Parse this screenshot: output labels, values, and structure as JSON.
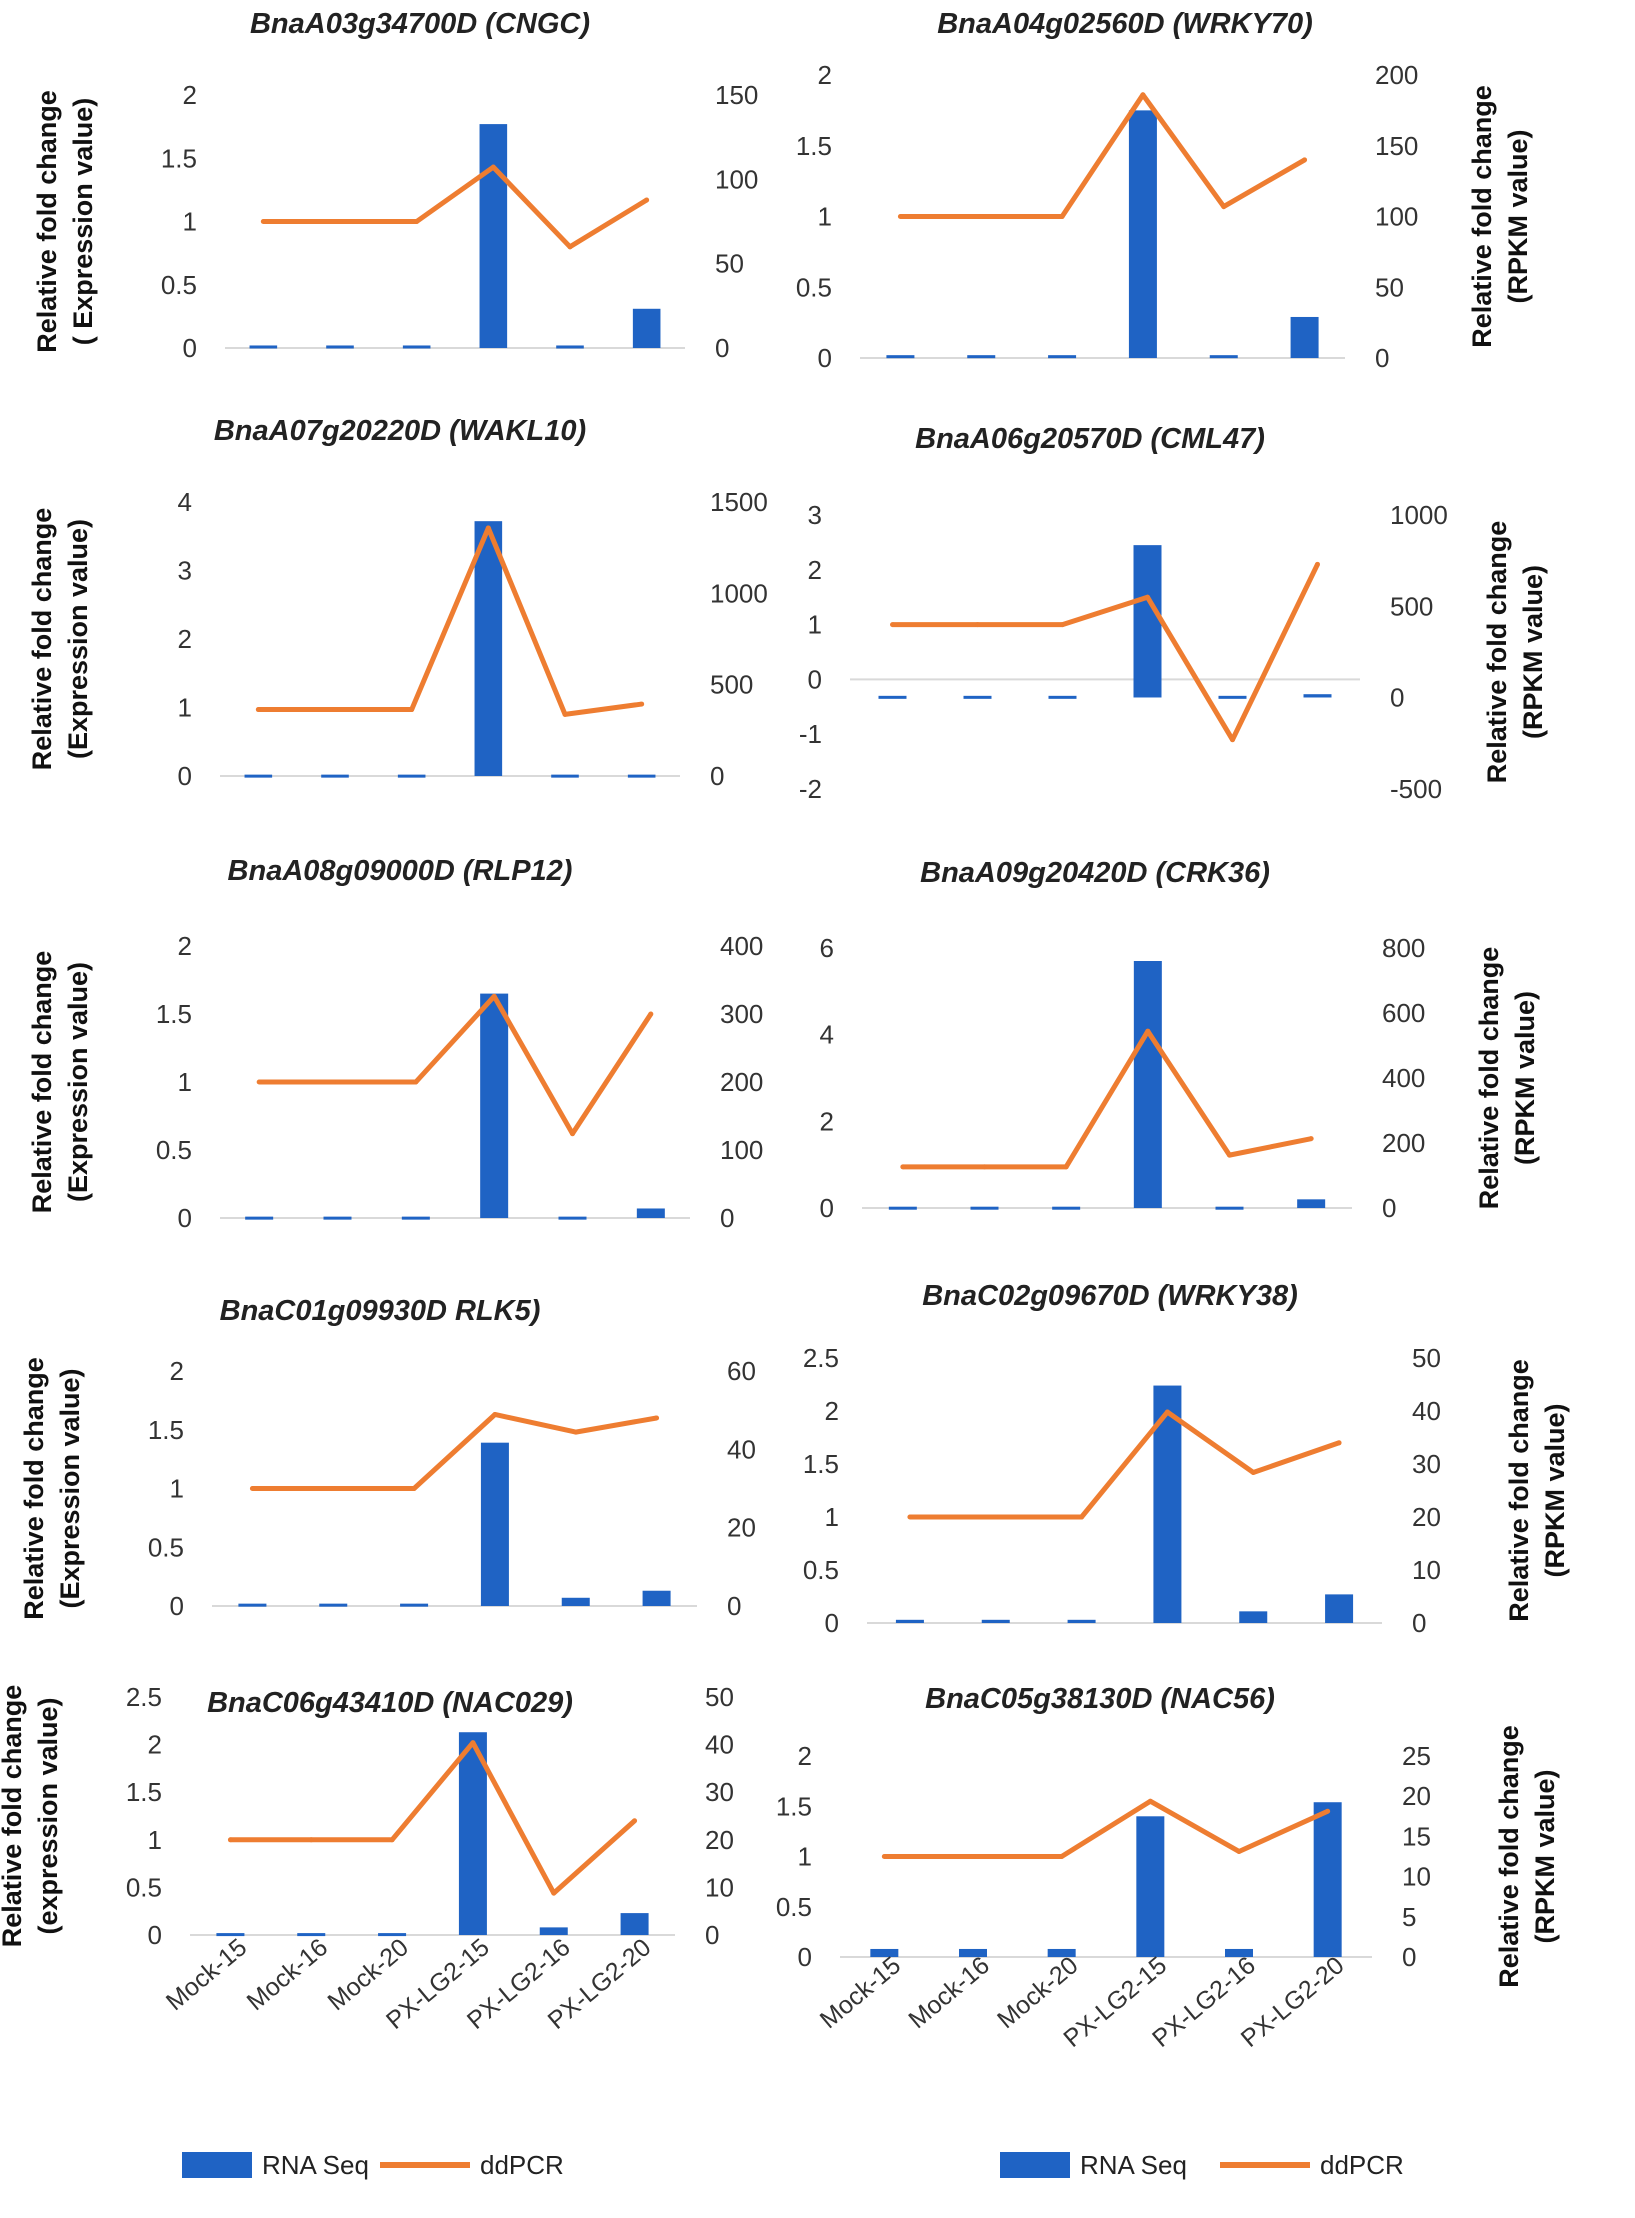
{
  "colors": {
    "bar": "#1f63c4",
    "line": "#ee7d31",
    "grid": "#d9d9d9"
  },
  "legend": {
    "bar_label": "RNA Seq",
    "line_label": "ddPCR"
  },
  "chart_data": [
    {
      "type": "bar+line",
      "title": "BnaA03g34700D (CNGC)",
      "ylabel": [
        "Relative fold change",
        "( Expression  value)"
      ],
      "ylabel_side": "left",
      "categories": [
        "Mock-15",
        "Mock-16",
        "Mock-20",
        "PX-LG2-15",
        "PX-LG2-16",
        "PX-LG2-20"
      ],
      "left_axis": {
        "min": 0,
        "max": 2,
        "ticks": [
          "0",
          "0.5",
          "1",
          "1.5",
          "2"
        ]
      },
      "right_axis": {
        "min": 0,
        "max": 150,
        "ticks": [
          "0",
          "50",
          "100",
          "150"
        ]
      },
      "series": [
        {
          "name": "RNA Seq",
          "type": "bar",
          "axis": "left",
          "values": [
            0.02,
            0.02,
            0.02,
            1.77,
            0.02,
            0.31
          ]
        },
        {
          "name": "ddPCR",
          "type": "line",
          "axis": "left",
          "values": [
            1.0,
            1.0,
            1.0,
            1.43,
            0.8,
            1.17
          ]
        }
      ],
      "show_xlabels": false
    },
    {
      "type": "bar+line",
      "title": "BnaA04g02560D (WRKY70)",
      "ylabel": [
        "Relative fold change",
        "(RPKM value)"
      ],
      "ylabel_side": "right",
      "categories": [
        "Mock-15",
        "Mock-16",
        "Mock-20",
        "PX-LG2-15",
        "PX-LG2-16",
        "PX-LG2-20"
      ],
      "left_axis": {
        "min": 0,
        "max": 2,
        "ticks": [
          "0",
          "0.5",
          "1",
          "1.5",
          "2"
        ]
      },
      "right_axis": {
        "min": 0,
        "max": 200,
        "ticks": [
          "0",
          "50",
          "100",
          "150",
          "200"
        ]
      },
      "series": [
        {
          "name": "RNA Seq",
          "type": "bar",
          "axis": "left",
          "values": [
            0.02,
            0.02,
            0.02,
            1.75,
            0.02,
            0.29
          ]
        },
        {
          "name": "ddPCR",
          "type": "line",
          "axis": "left",
          "values": [
            1.0,
            1.0,
            1.0,
            1.86,
            1.07,
            1.4
          ]
        }
      ],
      "show_xlabels": false
    },
    {
      "type": "bar+line",
      "title": "BnaA07g20220D (WAKL10)",
      "ylabel": [
        "Relative fold change",
        "(Expression value)"
      ],
      "ylabel_side": "left",
      "categories": [
        "Mock-15",
        "Mock-16",
        "Mock-20",
        "PX-LG2-15",
        "PX-LG2-16",
        "PX-LG2-20"
      ],
      "left_axis": {
        "min": 0,
        "max": 4,
        "ticks": [
          "0",
          "1",
          "2",
          "3",
          "4"
        ]
      },
      "right_axis": {
        "min": 0,
        "max": 1500,
        "ticks": [
          "0",
          "500",
          "1000",
          "1500"
        ]
      },
      "series": [
        {
          "name": "RNA Seq",
          "type": "bar",
          "axis": "left",
          "values": [
            0.02,
            0.02,
            0.02,
            3.72,
            0.02,
            0.02
          ]
        },
        {
          "name": "ddPCR",
          "type": "line",
          "axis": "left",
          "values": [
            0.97,
            0.97,
            0.97,
            3.62,
            0.9,
            1.05
          ]
        }
      ],
      "show_xlabels": false
    },
    {
      "type": "bar+line",
      "title": "BnaA06g20570D (CML47)",
      "ylabel": [
        "Relative fold change",
        "(RPKM value)"
      ],
      "ylabel_side": "right",
      "categories": [
        "Mock-15",
        "Mock-16",
        "Mock-20",
        "PX-LG2-15",
        "PX-LG2-16",
        "PX-LG2-20"
      ],
      "left_axis": {
        "min": -2,
        "max": 3,
        "ticks": [
          "-2",
          "-1",
          "0",
          "1",
          "2",
          "3"
        ]
      },
      "right_axis": {
        "min": -500,
        "max": 1000,
        "ticks": [
          "-500",
          "0",
          "500",
          "1000"
        ]
      },
      "bar_base": -0.33,
      "series": [
        {
          "name": "RNA Seq",
          "type": "bar",
          "axis": "left",
          "values": [
            -0.3,
            -0.3,
            -0.3,
            2.45,
            -0.3,
            -0.27
          ]
        },
        {
          "name": "ddPCR",
          "type": "line",
          "axis": "left",
          "values": [
            1.0,
            1.0,
            1.0,
            1.5,
            -1.1,
            2.1
          ]
        }
      ],
      "show_xlabels": false
    },
    {
      "type": "bar+line",
      "title": "BnaA08g09000D (RLP12)",
      "ylabel": [
        "Relative fold change",
        "(Expression  value)"
      ],
      "ylabel_side": "left",
      "categories": [
        "Mock-15",
        "Mock-16",
        "Mock-20",
        "PX-LG2-15",
        "PX-LG2-16",
        "PX-LG2-20"
      ],
      "left_axis": {
        "min": 0,
        "max": 2,
        "ticks": [
          "0",
          "0.5",
          "1",
          "1.5",
          "2"
        ]
      },
      "right_axis": {
        "min": 0,
        "max": 400,
        "ticks": [
          "0",
          "100",
          "200",
          "300",
          "400"
        ]
      },
      "series": [
        {
          "name": "RNA Seq",
          "type": "bar",
          "axis": "left",
          "values": [
            0.01,
            0.01,
            0.01,
            1.65,
            0.01,
            0.07
          ]
        },
        {
          "name": "ddPCR",
          "type": "line",
          "axis": "left",
          "values": [
            1.0,
            1.0,
            1.0,
            1.63,
            0.62,
            1.5
          ]
        }
      ],
      "show_xlabels": false
    },
    {
      "type": "bar+line",
      "title": "BnaA09g20420D (CRK36)",
      "ylabel": [
        "Relative fold change",
        "(RPKM value)"
      ],
      "ylabel_side": "right",
      "categories": [
        "Mock-15",
        "Mock-16",
        "Mock-20",
        "PX-LG2-15",
        "PX-LG2-16",
        "PX-LG2-20"
      ],
      "left_axis": {
        "min": 0,
        "max": 6,
        "ticks": [
          "0",
          "2",
          "4",
          "6"
        ]
      },
      "right_axis": {
        "min": 0,
        "max": 800,
        "ticks": [
          "0",
          "200",
          "400",
          "600",
          "800"
        ]
      },
      "series": [
        {
          "name": "RNA Seq",
          "type": "bar",
          "axis": "left",
          "values": [
            0.03,
            0.03,
            0.03,
            5.7,
            0.03,
            0.2
          ]
        },
        {
          "name": "ddPCR",
          "type": "line",
          "axis": "left",
          "values": [
            0.95,
            0.95,
            0.95,
            4.08,
            1.22,
            1.6
          ]
        }
      ],
      "show_xlabels": false
    },
    {
      "type": "bar+line",
      "title": "BnaC01g09930D RLK5)",
      "ylabel": [
        "Relative fold change",
        "(Expression  value)"
      ],
      "ylabel_side": "left",
      "categories": [
        "Mock-15",
        "Mock-16",
        "Mock-20",
        "PX-LG2-15",
        "PX-LG2-16",
        "PX-LG2-20"
      ],
      "left_axis": {
        "min": 0,
        "max": 2,
        "ticks": [
          "0",
          "0.5",
          "1",
          "1.5",
          "2"
        ]
      },
      "right_axis": {
        "min": 0,
        "max": 60,
        "ticks": [
          "0",
          "20",
          "40",
          "60"
        ]
      },
      "series": [
        {
          "name": "RNA Seq",
          "type": "bar",
          "axis": "left",
          "values": [
            0.02,
            0.02,
            0.02,
            1.39,
            0.07,
            0.13
          ]
        },
        {
          "name": "ddPCR",
          "type": "line",
          "axis": "left",
          "values": [
            1.0,
            1.0,
            1.0,
            1.63,
            1.48,
            1.6
          ]
        }
      ],
      "show_xlabels": false
    },
    {
      "type": "bar+line",
      "title": "BnaC02g09670D (WRKY38)",
      "ylabel": [
        "Relative fold change",
        "(RPKM value)"
      ],
      "ylabel_side": "right",
      "categories": [
        "Mock-15",
        "Mock-16",
        "Mock-20",
        "PX-LG2-15",
        "PX-LG2-16",
        "PX-LG2-20"
      ],
      "left_axis": {
        "min": 0,
        "max": 2.5,
        "ticks": [
          "0",
          "0.5",
          "1",
          "1.5",
          "2",
          "2.5"
        ]
      },
      "right_axis": {
        "min": 0,
        "max": 50,
        "ticks": [
          "0",
          "10",
          "20",
          "30",
          "40",
          "50"
        ]
      },
      "series": [
        {
          "name": "RNA Seq",
          "type": "bar",
          "axis": "left",
          "values": [
            0.03,
            0.03,
            0.03,
            2.24,
            0.11,
            0.27
          ]
        },
        {
          "name": "ddPCR",
          "type": "line",
          "axis": "left",
          "values": [
            1.0,
            1.0,
            1.0,
            1.99,
            1.42,
            1.7
          ]
        }
      ],
      "show_xlabels": false
    },
    {
      "type": "bar+line",
      "title": "BnaC06g43410D (NAC029)",
      "ylabel": [
        "Relative fold change",
        "(expression value)"
      ],
      "ylabel_side": "left",
      "categories": [
        "Mock-15",
        "Mock-16",
        "Mock-20",
        "PX-LG2-15",
        "PX-LG2-16",
        "PX-LG2-20"
      ],
      "left_axis": {
        "min": 0,
        "max": 2.5,
        "ticks": [
          "0",
          "0.5",
          "1",
          "1.5",
          "2",
          "2.5"
        ]
      },
      "right_axis": {
        "min": 0,
        "max": 50,
        "ticks": [
          "0",
          "10",
          "20",
          "30",
          "40",
          "50"
        ]
      },
      "series": [
        {
          "name": "RNA Seq",
          "type": "bar",
          "axis": "left",
          "values": [
            0.02,
            0.02,
            0.02,
            2.13,
            0.08,
            0.23
          ]
        },
        {
          "name": "ddPCR",
          "type": "line",
          "axis": "left",
          "values": [
            1.0,
            1.0,
            1.0,
            2.02,
            0.44,
            1.2
          ]
        }
      ],
      "show_xlabels": true
    },
    {
      "type": "bar+line",
      "title": "BnaC05g38130D (NAC56)",
      "ylabel": [
        "Relative fold change",
        "(RPKM value)"
      ],
      "ylabel_side": "right",
      "categories": [
        "Mock-15",
        "Mock-16",
        "Mock-20",
        "PX-LG2-15",
        "PX-LG2-16",
        "PX-LG2-20"
      ],
      "left_axis": {
        "min": 0,
        "max": 2,
        "ticks": [
          "0",
          "0.5",
          "1",
          "1.5",
          "2"
        ]
      },
      "right_axis": {
        "min": 0,
        "max": 25,
        "ticks": [
          "0",
          "5",
          "10",
          "15",
          "20",
          "25"
        ]
      },
      "series": [
        {
          "name": "RNA Seq",
          "type": "bar",
          "axis": "left",
          "values": [
            0.08,
            0.08,
            0.08,
            1.4,
            0.08,
            1.54
          ]
        },
        {
          "name": "ddPCR",
          "type": "line",
          "axis": "left",
          "values": [
            1.0,
            1.0,
            1.0,
            1.55,
            1.05,
            1.45
          ]
        }
      ],
      "show_xlabels": true
    }
  ]
}
